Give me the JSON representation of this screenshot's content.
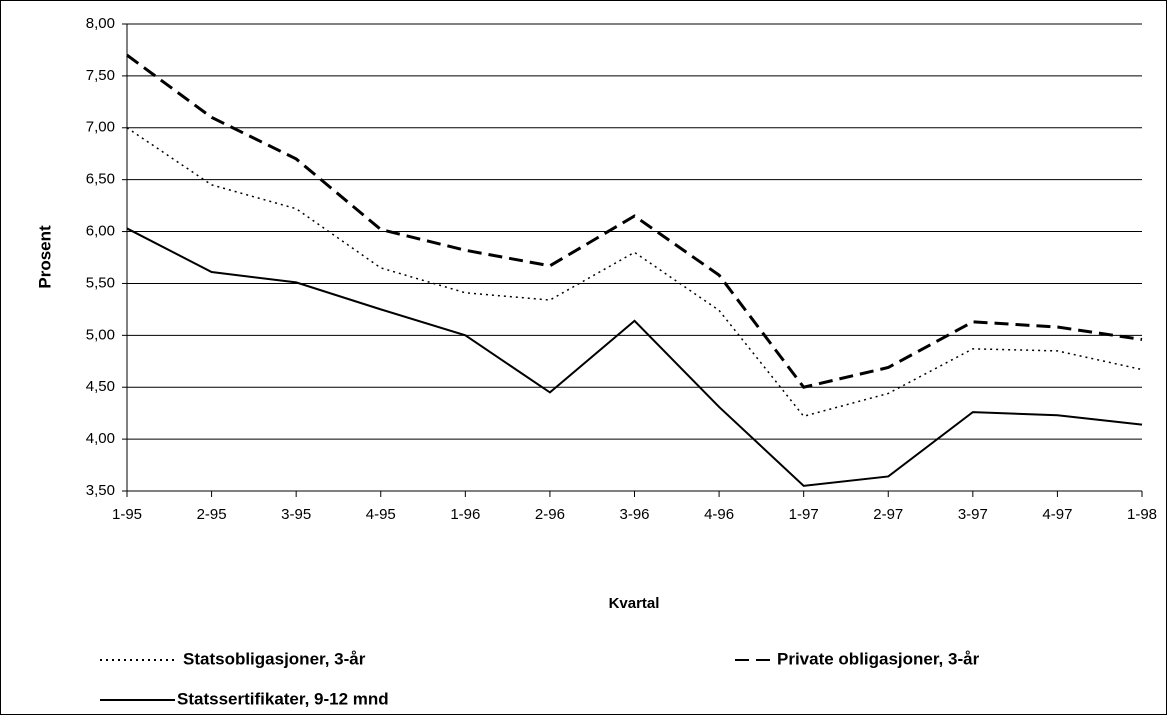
{
  "chart_data": {
    "type": "line",
    "y_label": "Prosent",
    "x_label": "Kvartal",
    "categories": [
      "1-95",
      "2-95",
      "3-95",
      "4-95",
      "1-96",
      "2-96",
      "3-96",
      "4-96",
      "1-97",
      "2-97",
      "3-97",
      "4-97",
      "1-98"
    ],
    "series": [
      {
        "name": "Statsobligasjoner, 3-år",
        "color": "#000000",
        "style": "dotted",
        "values": [
          7.0,
          6.45,
          6.22,
          5.65,
          5.41,
          5.34,
          5.8,
          5.24,
          4.22,
          4.44,
          4.87,
          4.85,
          4.67
        ]
      },
      {
        "name": "Private obligasjoner, 3-år",
        "color": "#000000",
        "style": "dashed",
        "values": [
          7.7,
          7.1,
          6.7,
          6.02,
          5.82,
          5.67,
          6.15,
          5.58,
          4.5,
          4.69,
          5.13,
          5.08,
          4.96
        ]
      },
      {
        "name": "Statssertifikater, 9-12 mnd",
        "color": "#000000",
        "style": "solid",
        "values": [
          6.03,
          5.61,
          5.51,
          5.25,
          5.0,
          4.45,
          5.14,
          4.31,
          3.55,
          3.64,
          4.26,
          4.23,
          4.14
        ]
      }
    ],
    "ylim": [
      3.5,
      8
    ],
    "yticks": [
      {
        "value": 3.5,
        "label": "3,50"
      },
      {
        "value": 4,
        "label": "4,00"
      },
      {
        "value": 4.5,
        "label": "4,50"
      },
      {
        "value": 5,
        "label": "5,00"
      },
      {
        "value": 5.5,
        "label": "5,50"
      },
      {
        "value": 6,
        "label": "6,00"
      },
      {
        "value": 6.5,
        "label": "6,50"
      },
      {
        "value": 7,
        "label": "7,00"
      },
      {
        "value": 7.5,
        "label": "7,50"
      },
      {
        "value": 8,
        "label": "8,00"
      }
    ],
    "grid": true,
    "legend": "bottom"
  }
}
